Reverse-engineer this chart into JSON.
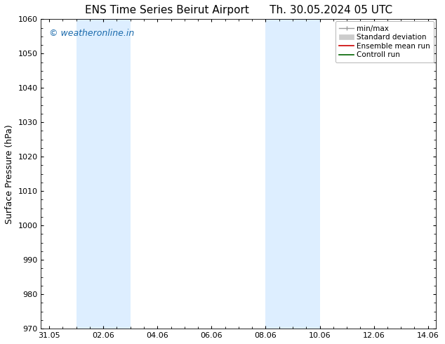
{
  "title_left": "ENS Time Series Beirut Airport",
  "title_right": "Th. 30.05.2024 05 UTC",
  "ylabel": "Surface Pressure (hPa)",
  "ylim": [
    970,
    1060
  ],
  "yticks": [
    970,
    980,
    990,
    1000,
    1010,
    1020,
    1030,
    1040,
    1050,
    1060
  ],
  "xtick_labels": [
    "31.05",
    "02.06",
    "04.06",
    "06.06",
    "08.06",
    "10.06",
    "12.06",
    "14.06"
  ],
  "xtick_positions": [
    0,
    2,
    4,
    6,
    8,
    10,
    12,
    14
  ],
  "xlim": [
    -0.3,
    14.3
  ],
  "shaded_bands": [
    {
      "x_start": 1.0,
      "x_end": 1.67
    },
    {
      "x_start": 1.67,
      "x_end": 3.0
    },
    {
      "x_start": 8.0,
      "x_end": 8.67
    },
    {
      "x_start": 8.67,
      "x_end": 10.0
    }
  ],
  "shaded_color": "#ddeeff",
  "watermark_text": "© weatheronline.in",
  "watermark_color": "#1a6aac",
  "bg_color": "#ffffff",
  "plot_bg_color": "#ffffff",
  "grid_color": "#bbbbbb",
  "title_fontsize": 11,
  "tick_fontsize": 8,
  "label_fontsize": 9,
  "watermark_fontsize": 9
}
